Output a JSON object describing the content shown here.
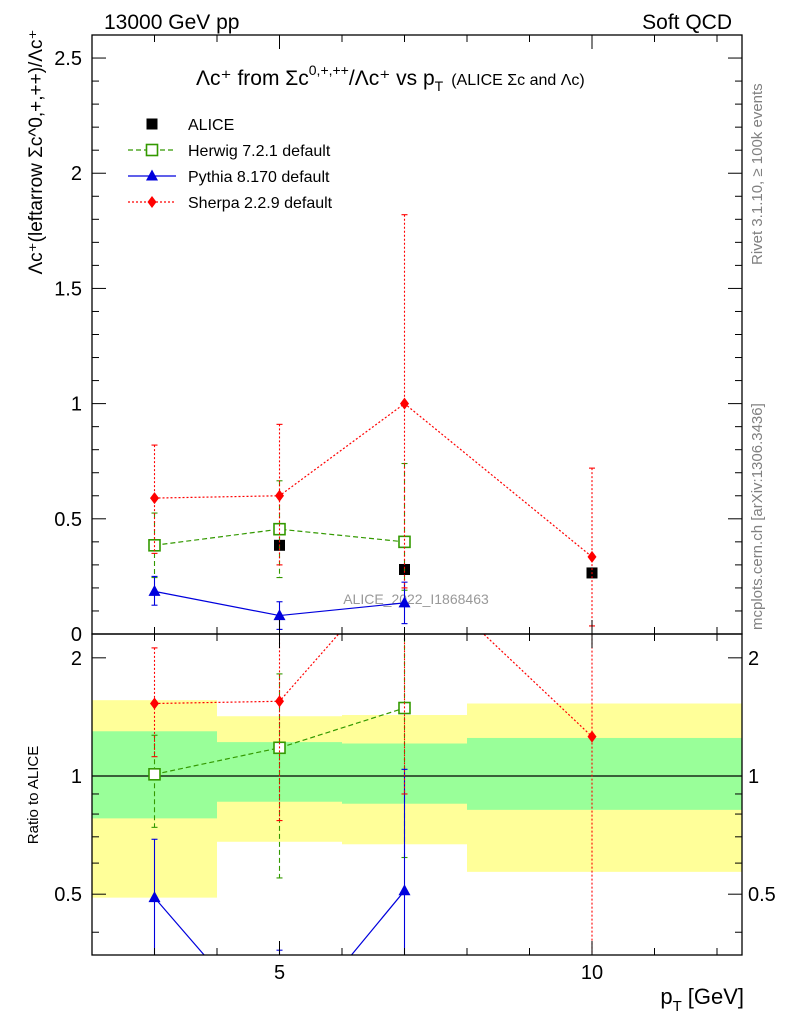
{
  "header": {
    "left": "13000 GeV pp",
    "right": "Soft QCD",
    "title_main": "Λc⁺ from Σc",
    "title_sup": "0,+,++",
    "title_rest": "/Λc⁺ vs p",
    "title_sub": "T",
    "title_note": "(ALICE Σc and Λc)"
  },
  "side_text": {
    "rivet": "Rivet 3.1.10, ≥ 100k events",
    "mcplots": "mcplots.cern.ch [arXiv:1306.3436]"
  },
  "watermark": "ALICE_2022_I1868463",
  "axes": {
    "ylabel_main": "Λc⁺(leftarrow Σc^0,+,++)/Λc⁺",
    "ylabel_ratio": "Ratio to ALICE",
    "xlabel": "p_T [GeV]",
    "xlabel_p": "p",
    "xlabel_sub": "T",
    "xlabel_unit": "[GeV]"
  },
  "chart_data": {
    "type": "scatter",
    "xlim": [
      2,
      12.4
    ],
    "x_ticks": [
      5,
      10
    ],
    "x_tick_labels": [
      "5",
      "10"
    ],
    "main": {
      "ylim": [
        0,
        2.6
      ],
      "y_ticks": [
        0,
        0.5,
        1,
        1.5,
        2,
        2.5
      ],
      "y_tick_labels": [
        "0",
        "0.5",
        "1",
        "1.5",
        "2",
        "2.5"
      ]
    },
    "ratio": {
      "ylim": [
        0.35,
        2.3
      ],
      "y_ticks": [
        0.5,
        1,
        2
      ],
      "y_tick_labels": [
        "0.5",
        "1",
        "2"
      ]
    },
    "alice": {
      "name": "ALICE",
      "x": [
        3,
        5,
        7,
        10
      ],
      "y": [
        0.385,
        0.385,
        0.28,
        0.265
      ],
      "bins": [
        [
          2,
          4
        ],
        [
          4,
          6
        ],
        [
          6,
          8
        ],
        [
          8,
          12.4
        ]
      ],
      "band_inner": [
        [
          0.78,
          1.3
        ],
        [
          0.86,
          1.22
        ],
        [
          0.85,
          1.21
        ],
        [
          0.82,
          1.25
        ]
      ],
      "band_outer": [
        [
          0.49,
          1.56
        ],
        [
          0.68,
          1.42
        ],
        [
          0.67,
          1.43
        ],
        [
          0.57,
          1.53
        ]
      ]
    },
    "series": [
      {
        "name": "Herwig 7.2.1 default",
        "color": "#339900",
        "marker": "open-square",
        "dash": "dashed",
        "x": [
          3,
          5,
          7
        ],
        "y": [
          0.385,
          0.455,
          0.4
        ],
        "yerr_lo": [
          0.14,
          0.21,
          0.21
        ],
        "yerr_hi": [
          0.14,
          0.21,
          0.34
        ],
        "ratio": [
          1.01,
          1.18,
          1.49
        ],
        "ratio_lo": [
          0.74,
          0.55,
          0.62
        ],
        "ratio_hi": [
          1.27,
          1.82,
          2.6
        ]
      },
      {
        "name": "Pythia 8.170 default",
        "color": "#0000dd",
        "marker": "filled-triangle",
        "dash": "solid",
        "x": [
          3,
          5,
          7
        ],
        "y": [
          0.185,
          0.08,
          0.135
        ],
        "yerr_lo": [
          0.06,
          0.06,
          0.09
        ],
        "yerr_hi": [
          0.065,
          0.06,
          0.09
        ],
        "ratio": [
          0.49,
          0.21,
          0.51
        ],
        "ratio_lo": [
          0.2,
          0.2,
          0.2
        ],
        "ratio_hi": [
          0.69,
          0.36,
          1.04
        ]
      },
      {
        "name": "Sherpa 2.2.9 default",
        "color": "#ff0000",
        "marker": "filled-diamond",
        "dash": "dotted",
        "x": [
          3,
          5,
          7,
          10
        ],
        "y": [
          0.59,
          0.6,
          1.0,
          0.335
        ],
        "yerr_lo": [
          0.24,
          0.3,
          0.8,
          0.3
        ],
        "yerr_hi": [
          0.23,
          0.31,
          0.82,
          0.385
        ],
        "ratio": [
          1.53,
          1.55,
          3.57,
          1.26
        ],
        "ratio_lo": [
          1.12,
          0.77,
          0.9,
          0.3
        ],
        "ratio_hi": [
          2.12,
          2.35,
          3.5,
          2.7
        ]
      }
    ]
  }
}
